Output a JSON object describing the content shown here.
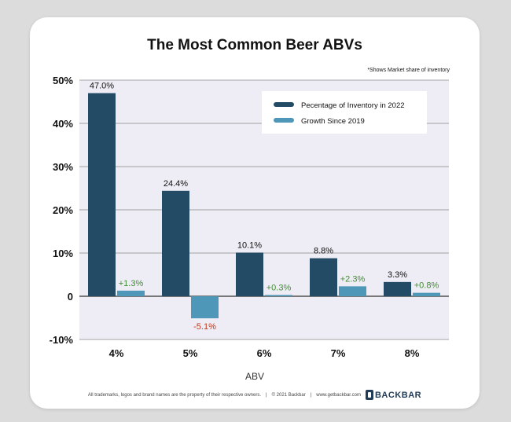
{
  "chart_data": {
    "type": "bar",
    "title": "The Most Common Beer ABVs",
    "note": "*Shows Market share of inventory",
    "xlabel": "ABV",
    "ylabel": "",
    "categories": [
      "4%",
      "5%",
      "6%",
      "7%",
      "8%"
    ],
    "series": [
      {
        "name": "Pecentage of Inventory in 2022",
        "values": [
          47.0,
          24.4,
          10.1,
          8.8,
          3.3
        ],
        "labels": [
          "47.0%",
          "24.4%",
          "10.1%",
          "8.8%",
          "3.3%"
        ],
        "color": "#234b66",
        "label_color": "#111111"
      },
      {
        "name": "Growth Since 2019",
        "values": [
          1.3,
          -5.1,
          0.3,
          2.3,
          0.8
        ],
        "labels": [
          "+1.3%",
          "-5.1%",
          "+0.3%",
          "+2.3%",
          "+0.8%"
        ],
        "color": "#4f97b9",
        "label_color_positive": "#3e8e2f",
        "label_color_negative": "#c0391b"
      }
    ],
    "ylim": [
      -10,
      50
    ],
    "yticks": [
      -10,
      0,
      10,
      20,
      30,
      40,
      50
    ],
    "ytick_labels": [
      "-10%",
      "0",
      "10%",
      "20%",
      "30%",
      "40%",
      "50%"
    ],
    "grid": true,
    "legend_position": "top-right",
    "plot_background": "#eeedf5"
  },
  "footer": {
    "disclaimer": "All trademarks, logos and brand names are the property of their respective owners.",
    "copyright": "© 2021 Backbar",
    "website": "www.getbackbar.com",
    "brand": "BACKBAR"
  }
}
